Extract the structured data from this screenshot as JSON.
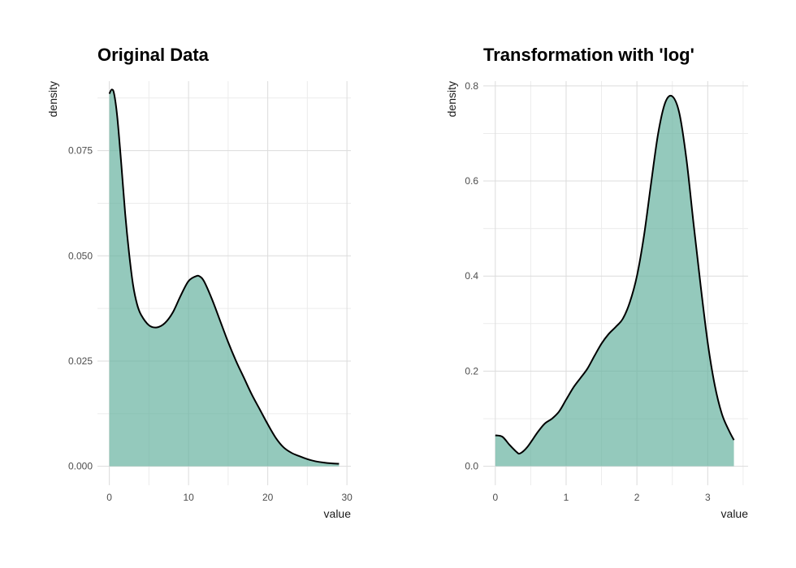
{
  "chart_data": [
    {
      "type": "area",
      "title": "Original Data",
      "xlabel": "value",
      "ylabel": "density",
      "xlim": [
        -1.5,
        30.5
      ],
      "ylim": [
        -0.0045,
        0.0915
      ],
      "xticks": [
        0,
        10,
        20,
        30
      ],
      "xtick_labels": [
        "0",
        "10",
        "20",
        "30"
      ],
      "yticks": [
        0.0,
        0.025,
        0.05,
        0.075
      ],
      "ytick_labels": [
        "0.000",
        "0.025",
        "0.050",
        "0.075"
      ],
      "grid": true,
      "fill_color": "#66b2a0",
      "line_color": "#000000",
      "x": [
        0,
        0.3,
        0.6,
        1,
        1.5,
        2,
        2.5,
        3,
        3.5,
        4,
        5,
        6,
        7,
        8,
        9,
        10,
        11,
        11.5,
        12,
        13,
        14,
        15,
        16,
        17,
        18,
        19,
        20,
        21,
        22,
        23,
        24,
        25,
        26,
        27,
        28,
        29
      ],
      "y": [
        0.0885,
        0.0895,
        0.0885,
        0.083,
        0.072,
        0.06,
        0.0505,
        0.043,
        0.0385,
        0.036,
        0.0335,
        0.033,
        0.034,
        0.0365,
        0.0405,
        0.044,
        0.0452,
        0.045,
        0.0438,
        0.0395,
        0.0345,
        0.0295,
        0.025,
        0.021,
        0.017,
        0.0135,
        0.01,
        0.0068,
        0.0045,
        0.0032,
        0.0024,
        0.0017,
        0.0012,
        0.0009,
        0.0007,
        0.0006
      ]
    },
    {
      "type": "area",
      "title": "Transformation with 'log'",
      "xlabel": "value",
      "ylabel": "density",
      "xlim": [
        -0.17,
        3.57
      ],
      "ylim": [
        -0.04,
        0.81
      ],
      "xticks": [
        0,
        1,
        2,
        3
      ],
      "xtick_labels": [
        "0",
        "1",
        "2",
        "3"
      ],
      "yticks": [
        0.0,
        0.2,
        0.4,
        0.6,
        0.8
      ],
      "ytick_labels": [
        "0.0",
        "0.2",
        "0.4",
        "0.6",
        "0.8"
      ],
      "grid": true,
      "fill_color": "#66b2a0",
      "line_color": "#000000",
      "x": [
        0,
        0.1,
        0.2,
        0.3,
        0.35,
        0.45,
        0.6,
        0.7,
        0.8,
        0.9,
        1.0,
        1.1,
        1.2,
        1.3,
        1.4,
        1.5,
        1.6,
        1.7,
        1.8,
        1.9,
        2.0,
        2.1,
        2.2,
        2.3,
        2.4,
        2.5,
        2.6,
        2.7,
        2.8,
        2.9,
        3.0,
        3.1,
        3.2,
        3.3,
        3.37
      ],
      "y": [
        0.065,
        0.062,
        0.045,
        0.03,
        0.027,
        0.04,
        0.072,
        0.09,
        0.1,
        0.115,
        0.14,
        0.165,
        0.185,
        0.205,
        0.232,
        0.258,
        0.278,
        0.293,
        0.31,
        0.345,
        0.4,
        0.485,
        0.595,
        0.7,
        0.765,
        0.778,
        0.742,
        0.645,
        0.51,
        0.38,
        0.26,
        0.17,
        0.11,
        0.075,
        0.055
      ]
    }
  ]
}
